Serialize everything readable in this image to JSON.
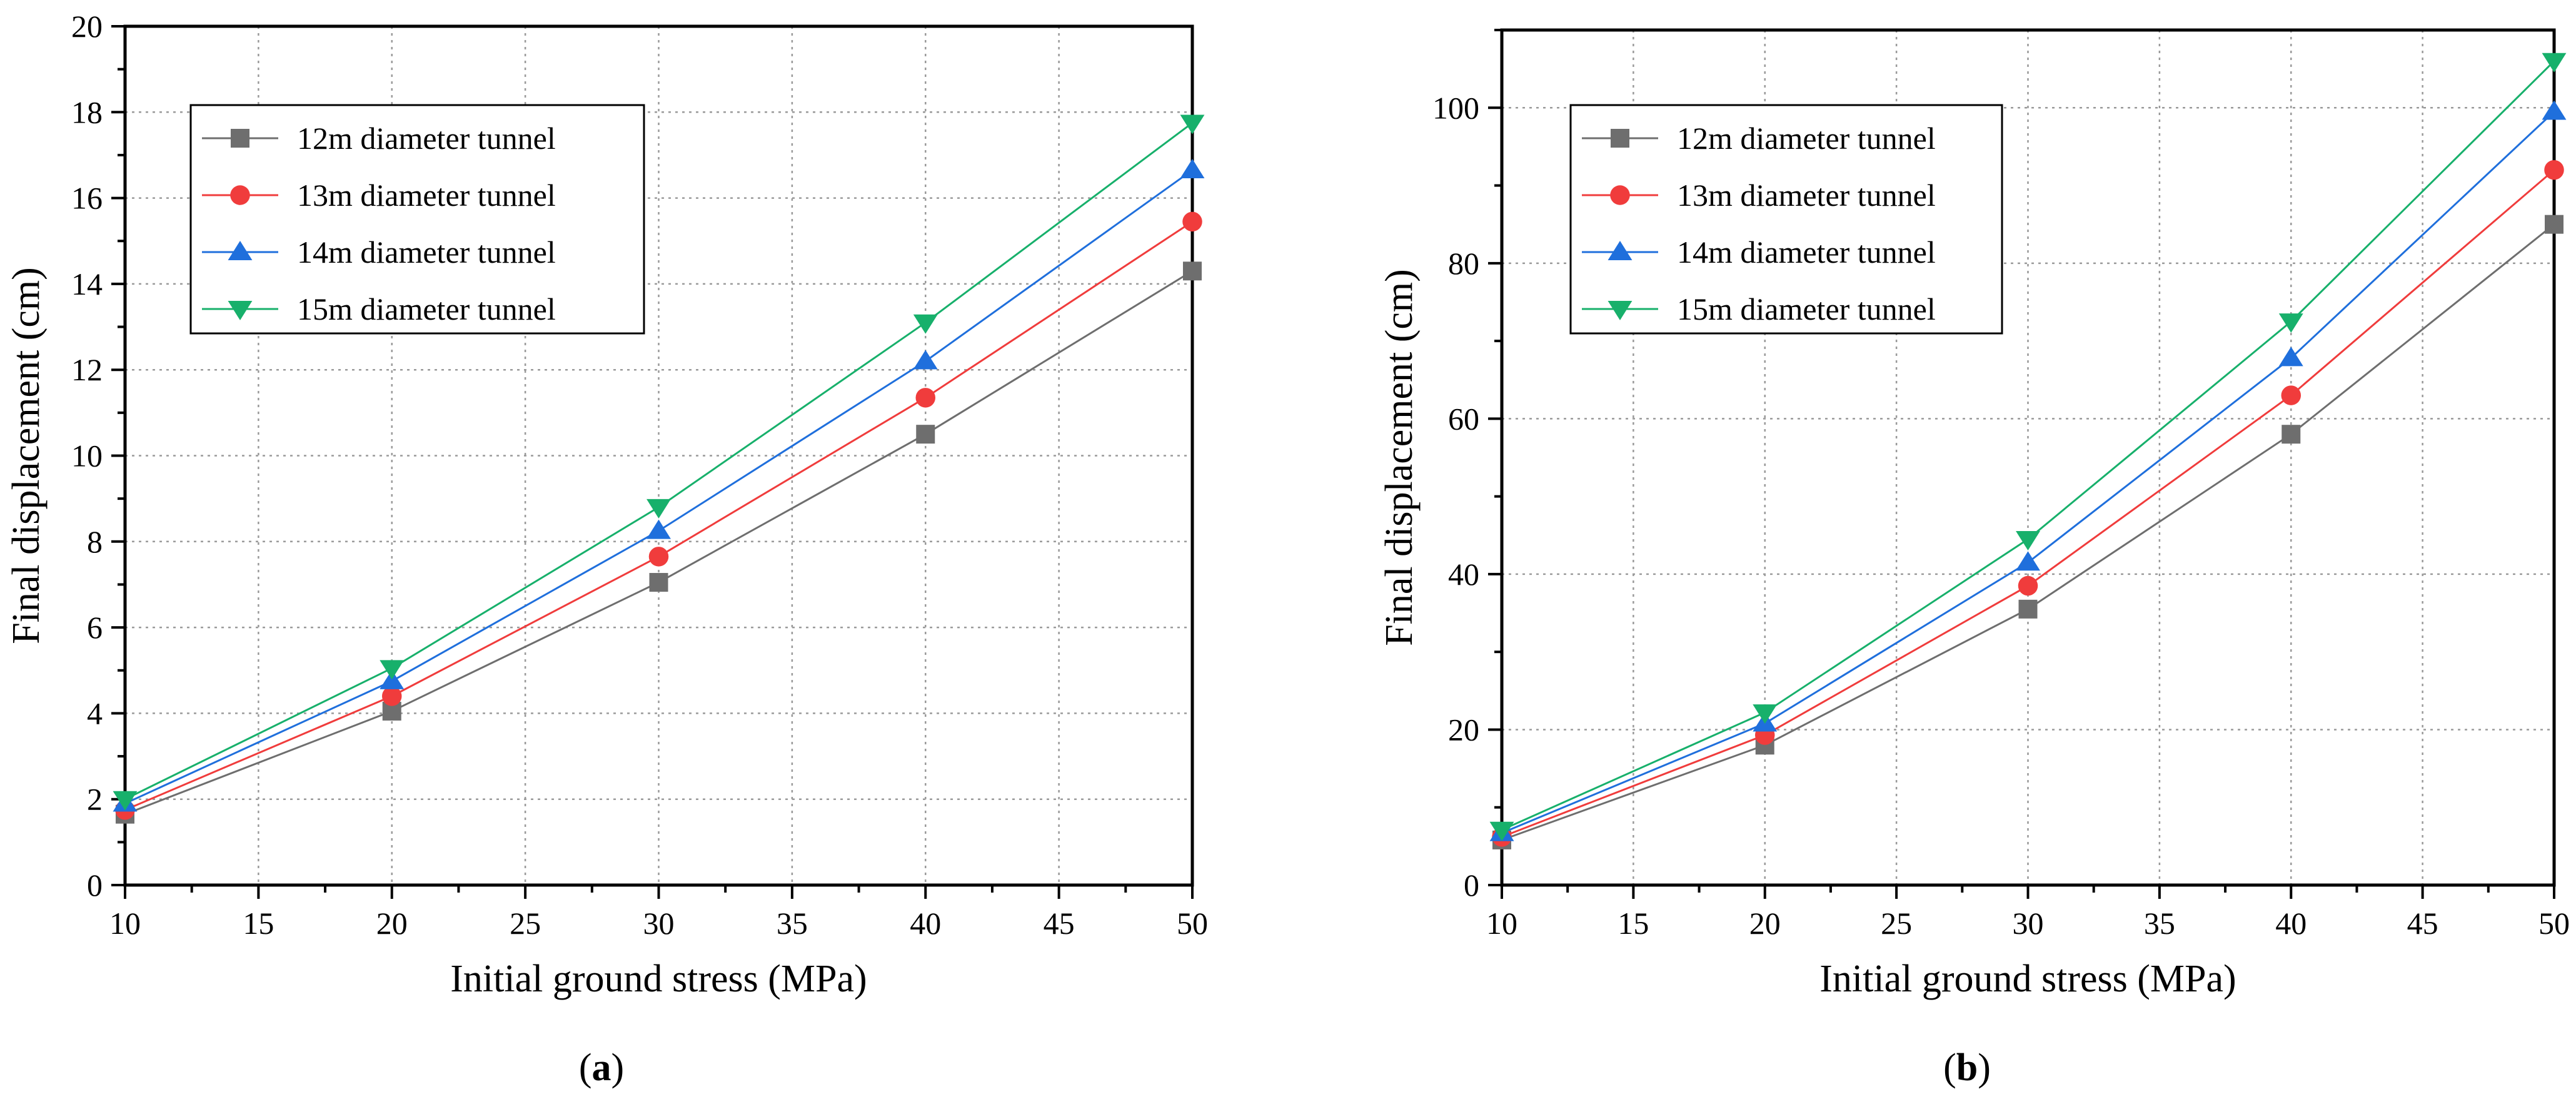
{
  "chart_data": [
    {
      "type": "line",
      "panel": "a",
      "xlabel": "Initial ground stress (MPa)",
      "ylabel": "Final displacement (cm)",
      "xlim": [
        10,
        50
      ],
      "ylim": [
        0,
        20
      ],
      "xticks": [
        10,
        15,
        20,
        25,
        30,
        35,
        40,
        45,
        50
      ],
      "yticks": [
        0,
        2,
        4,
        6,
        8,
        10,
        12,
        14,
        16,
        18,
        20
      ],
      "x": [
        10,
        20,
        30,
        40,
        50
      ],
      "grid": true,
      "legend_position": "top-left",
      "caption_open": "(",
      "caption_letter": "a",
      "caption_close": ")",
      "series": [
        {
          "name": "12m diameter tunnel",
          "marker": "square",
          "color": "#6e6e6e",
          "values": [
            1.65,
            4.05,
            7.05,
            10.5,
            14.3
          ]
        },
        {
          "name": "13m diameter tunnel",
          "marker": "circle",
          "color": "#f03c3c",
          "values": [
            1.75,
            4.4,
            7.65,
            11.35,
            15.45
          ]
        },
        {
          "name": "14m diameter tunnel",
          "marker": "triangle-up",
          "color": "#1f6fdc",
          "values": [
            1.9,
            4.75,
            8.25,
            12.2,
            16.65
          ]
        },
        {
          "name": "15m diameter tunnel",
          "marker": "triangle-down",
          "color": "#17b06b",
          "values": [
            2.0,
            5.05,
            8.8,
            13.1,
            17.75
          ]
        }
      ]
    },
    {
      "type": "line",
      "panel": "b",
      "xlabel": "Initial ground stress (MPa)",
      "ylabel": "Final displacement (cm)",
      "xlim": [
        10,
        50
      ],
      "ylim": [
        0,
        110
      ],
      "xticks": [
        10,
        15,
        20,
        25,
        30,
        35,
        40,
        45,
        50
      ],
      "yticks": [
        0,
        20,
        40,
        60,
        80,
        100
      ],
      "x": [
        10,
        20,
        30,
        40,
        50
      ],
      "grid": true,
      "legend_position": "top-left",
      "caption_open": "(",
      "caption_letter": "b",
      "caption_close": ")",
      "series": [
        {
          "name": "12m diameter tunnel",
          "marker": "square",
          "color": "#6e6e6e",
          "values": [
            5.8,
            18.0,
            35.5,
            58.0,
            85.0
          ]
        },
        {
          "name": "13m diameter tunnel",
          "marker": "circle",
          "color": "#f03c3c",
          "values": [
            6.2,
            19.3,
            38.5,
            63.0,
            92.0
          ]
        },
        {
          "name": "14m diameter tunnel",
          "marker": "triangle-up",
          "color": "#1f6fdc",
          "values": [
            6.7,
            20.8,
            41.5,
            67.8,
            99.5
          ]
        },
        {
          "name": "15m diameter tunnel",
          "marker": "triangle-down",
          "color": "#17b06b",
          "values": [
            7.1,
            22.2,
            44.5,
            72.5,
            106.0
          ]
        }
      ]
    }
  ]
}
